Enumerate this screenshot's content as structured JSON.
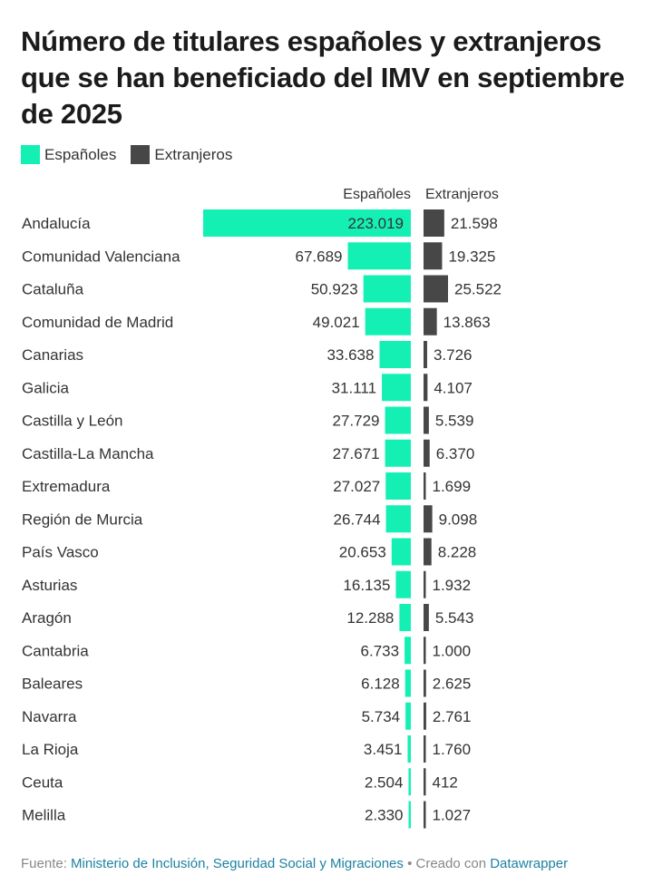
{
  "title": "Número de titulares españoles y extranjeros que se han beneficiado del IMV en septiembre de 2025",
  "legend": [
    {
      "label": "Españoles",
      "color": "#14f0b4"
    },
    {
      "label": "Extranjeros",
      "color": "#474747"
    }
  ],
  "footer": {
    "source_prefix": "Fuente: ",
    "source_name": "Ministerio de Inclusión, Seguridad Social y Migraciones",
    "separator": " • Creado con ",
    "tool": "Datawrapper"
  },
  "chart_data": {
    "type": "bar",
    "categories": [
      "Andalucía",
      "Comunidad Valenciana",
      "Cataluña",
      "Comunidad de Madrid",
      "Canarias",
      "Galicia",
      "Castilla y León",
      "Castilla-La Mancha",
      "Extremadura",
      "Región de Murcia",
      "País Vasco",
      "Asturias",
      "Aragón",
      "Cantabria",
      "Baleares",
      "Navarra",
      "La Rioja",
      "Ceuta",
      "Melilla"
    ],
    "series": [
      {
        "name": "Españoles",
        "color": "#14f0b4",
        "values": [
          223019,
          67689,
          50923,
          49021,
          33638,
          31111,
          27729,
          27671,
          27027,
          26744,
          20653,
          16135,
          12288,
          6733,
          6128,
          5734,
          3451,
          2504,
          2330
        ],
        "labels": [
          "223.019",
          "67.689",
          "50.923",
          "49.021",
          "33.638",
          "31.111",
          "27.729",
          "27.671",
          "27.027",
          "26.744",
          "20.653",
          "16.135",
          "12.288",
          "6.733",
          "6.128",
          "5.734",
          "3.451",
          "2.504",
          "2.330"
        ]
      },
      {
        "name": "Extranjeros",
        "color": "#474747",
        "values": [
          21598,
          19325,
          25522,
          13863,
          3726,
          4107,
          5539,
          6370,
          1699,
          9098,
          8228,
          1932,
          5543,
          1000,
          2625,
          2761,
          1760,
          412,
          1027
        ],
        "labels": [
          "21.598",
          "19.325",
          "25.522",
          "13.863",
          "3.726",
          "4.107",
          "5.539",
          "6.370",
          "1.699",
          "9.098",
          "8.228",
          "1.932",
          "5.543",
          "1.000",
          "2.625",
          "2.761",
          "1.760",
          "412",
          "1.027"
        ]
      }
    ]
  }
}
